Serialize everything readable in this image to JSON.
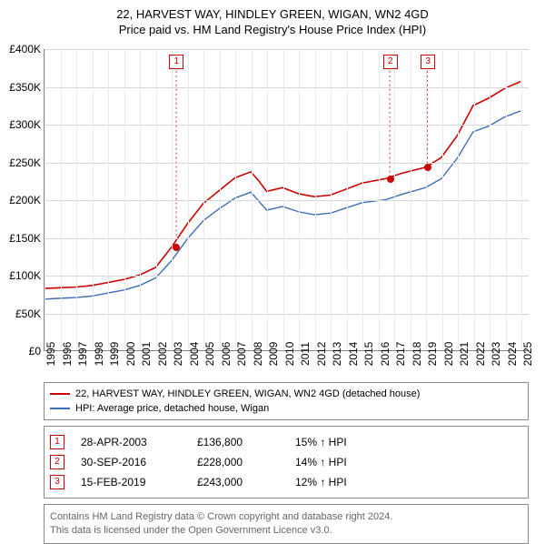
{
  "title": "22, HARVEST WAY, HINDLEY GREEN, WIGAN, WN2 4GD",
  "subtitle": "Price paid vs. HM Land Registry's House Price Index (HPI)",
  "chart": {
    "type": "line",
    "xlim": [
      1995,
      2025.5
    ],
    "ylim": [
      0,
      400000
    ],
    "ytick_step": 50000,
    "yticks": [
      "£0",
      "£50K",
      "£100K",
      "£150K",
      "£200K",
      "£250K",
      "£300K",
      "£350K",
      "£400K"
    ],
    "xticks": [
      1995,
      1996,
      1997,
      1998,
      1999,
      2000,
      2001,
      2002,
      2003,
      2004,
      2005,
      2006,
      2007,
      2008,
      2009,
      2010,
      2011,
      2012,
      2013,
      2014,
      2015,
      2016,
      2017,
      2018,
      2019,
      2020,
      2021,
      2022,
      2023,
      2024,
      2025
    ],
    "background_color": "#ffffff",
    "grid_color_h": "#d6d6d6",
    "grid_color_v": "#eaeaea",
    "axis_color": "#888888",
    "title_fontsize": 13,
    "label_fontsize": 12,
    "series": [
      {
        "name": "price_paid",
        "color": "#cc0000",
        "line_width": 1.6,
        "points": [
          [
            1995,
            82000
          ],
          [
            1996,
            83000
          ],
          [
            1997,
            84000
          ],
          [
            1998,
            86000
          ],
          [
            1999,
            90000
          ],
          [
            2000,
            94000
          ],
          [
            2001,
            100000
          ],
          [
            2002,
            110000
          ],
          [
            2003,
            137000
          ],
          [
            2004,
            168000
          ],
          [
            2005,
            195000
          ],
          [
            2006,
            212000
          ],
          [
            2007,
            229000
          ],
          [
            2008,
            237000
          ],
          [
            2008.5,
            225000
          ],
          [
            2009,
            211000
          ],
          [
            2010,
            216000
          ],
          [
            2011,
            208000
          ],
          [
            2012,
            204000
          ],
          [
            2013,
            206000
          ],
          [
            2014,
            214000
          ],
          [
            2015,
            222000
          ],
          [
            2016.5,
            228000
          ],
          [
            2017.5,
            235000
          ],
          [
            2019,
            243000
          ],
          [
            2020,
            256000
          ],
          [
            2021,
            285000
          ],
          [
            2022,
            325000
          ],
          [
            2023,
            335000
          ],
          [
            2024,
            348000
          ],
          [
            2025,
            357000
          ]
        ]
      },
      {
        "name": "hpi",
        "color": "#3b6db5",
        "line_width": 1.4,
        "points": [
          [
            1995,
            68000
          ],
          [
            1996,
            69000
          ],
          [
            1997,
            70000
          ],
          [
            1998,
            72000
          ],
          [
            1999,
            76000
          ],
          [
            2000,
            80000
          ],
          [
            2001,
            86000
          ],
          [
            2002,
            96000
          ],
          [
            2003,
            119000
          ],
          [
            2004,
            148000
          ],
          [
            2005,
            172000
          ],
          [
            2006,
            188000
          ],
          [
            2007,
            202000
          ],
          [
            2008,
            210000
          ],
          [
            2008.5,
            198000
          ],
          [
            2009,
            186000
          ],
          [
            2010,
            191000
          ],
          [
            2011,
            184000
          ],
          [
            2012,
            180000
          ],
          [
            2013,
            182000
          ],
          [
            2014,
            189000
          ],
          [
            2015,
            196000
          ],
          [
            2016.5,
            200000
          ],
          [
            2017.5,
            207000
          ],
          [
            2019,
            216000
          ],
          [
            2020,
            228000
          ],
          [
            2021,
            255000
          ],
          [
            2022,
            290000
          ],
          [
            2023,
            298000
          ],
          [
            2024,
            310000
          ],
          [
            2025,
            318000
          ]
        ]
      }
    ],
    "markers": [
      {
        "n": "1",
        "year": 2003.3,
        "value": 136800
      },
      {
        "n": "2",
        "year": 2016.75,
        "value": 228000
      },
      {
        "n": "3",
        "year": 2019.12,
        "value": 243000
      }
    ],
    "dot_color": "#cc0000"
  },
  "legend": {
    "items": [
      {
        "color": "#cc0000",
        "label": "22, HARVEST WAY, HINDLEY GREEN, WIGAN, WN2 4GD (detached house)"
      },
      {
        "color": "#3b6db5",
        "label": "HPI: Average price, detached house, Wigan"
      }
    ]
  },
  "events": [
    {
      "n": "1",
      "date": "28-APR-2003",
      "price": "£136,800",
      "pct": "15% ↑ HPI"
    },
    {
      "n": "2",
      "date": "30-SEP-2016",
      "price": "£228,000",
      "pct": "14% ↑ HPI"
    },
    {
      "n": "3",
      "date": "15-FEB-2019",
      "price": "£243,000",
      "pct": "12% ↑ HPI"
    }
  ],
  "footnote": {
    "line1": "Contains HM Land Registry data © Crown copyright and database right 2024.",
    "line2": "This data is licensed under the Open Government Licence v3.0."
  }
}
